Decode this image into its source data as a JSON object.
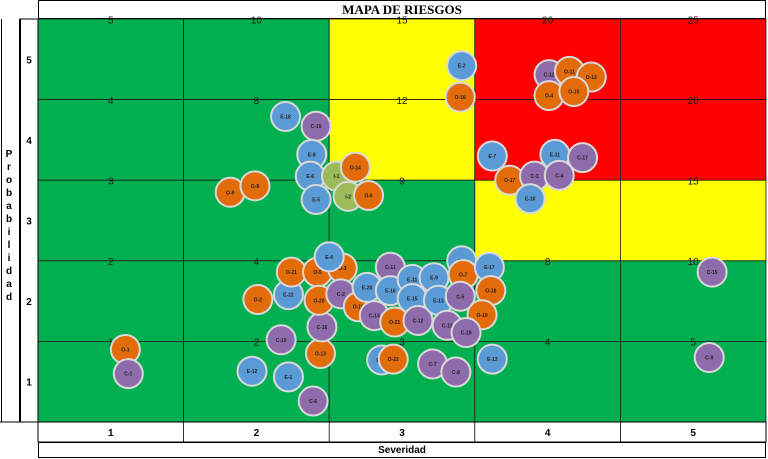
{
  "chart_data": {
    "type": "scatter",
    "title": "MAPA DE RIESGOS",
    "xlabel": "Severidad",
    "ylabel": "Probabilidad",
    "x_ticks": [
      1,
      2,
      3,
      4,
      5
    ],
    "y_ticks": [
      1,
      2,
      3,
      4,
      5
    ],
    "xlim": [
      0.5,
      5.5
    ],
    "ylim": [
      0.5,
      5.5
    ],
    "grid": true,
    "colors": {
      "low": "#00b050",
      "medium": "#ffff00",
      "high": "#ff0000",
      "E": "#5b9bd5",
      "C": "#8e6bab",
      "O": "#e36c0a",
      "I": "#9bbb59"
    },
    "cells": [
      {
        "sev": 1,
        "prob": 5,
        "value": 5,
        "level": "low"
      },
      {
        "sev": 2,
        "prob": 5,
        "value": 10,
        "level": "low"
      },
      {
        "sev": 3,
        "prob": 5,
        "value": 15,
        "level": "medium"
      },
      {
        "sev": 4,
        "prob": 5,
        "value": 20,
        "level": "high"
      },
      {
        "sev": 5,
        "prob": 5,
        "value": 25,
        "level": "high"
      },
      {
        "sev": 1,
        "prob": 4,
        "value": 4,
        "level": "low"
      },
      {
        "sev": 2,
        "prob": 4,
        "value": 8,
        "level": "low"
      },
      {
        "sev": 3,
        "prob": 4,
        "value": 12,
        "level": "medium"
      },
      {
        "sev": 4,
        "prob": 4,
        "value": 16,
        "level": "high"
      },
      {
        "sev": 5,
        "prob": 4,
        "value": 20,
        "level": "high"
      },
      {
        "sev": 1,
        "prob": 3,
        "value": 3,
        "level": "low"
      },
      {
        "sev": 2,
        "prob": 3,
        "value": 6,
        "level": "low"
      },
      {
        "sev": 3,
        "prob": 3,
        "value": 9,
        "level": "low"
      },
      {
        "sev": 4,
        "prob": 3,
        "value": 12,
        "level": "medium"
      },
      {
        "sev": 5,
        "prob": 3,
        "value": 15,
        "level": "medium"
      },
      {
        "sev": 1,
        "prob": 2,
        "value": 2,
        "level": "low"
      },
      {
        "sev": 2,
        "prob": 2,
        "value": 4,
        "level": "low"
      },
      {
        "sev": 3,
        "prob": 2,
        "value": 6,
        "level": "low"
      },
      {
        "sev": 4,
        "prob": 2,
        "value": 8,
        "level": "low"
      },
      {
        "sev": 5,
        "prob": 2,
        "value": 10,
        "level": "low"
      },
      {
        "sev": 1,
        "prob": 1,
        "value": 1,
        "level": "low"
      },
      {
        "sev": 2,
        "prob": 1,
        "value": 2,
        "level": "low"
      },
      {
        "sev": 3,
        "prob": 1,
        "value": 3,
        "level": "low"
      },
      {
        "sev": 4,
        "prob": 1,
        "value": 4,
        "level": "low"
      },
      {
        "sev": 5,
        "prob": 1,
        "value": 5,
        "level": "low"
      }
    ],
    "points": [
      {
        "label": "O-1",
        "x": 1.1,
        "y": 1.4,
        "type": "O"
      },
      {
        "label": "C-1",
        "x": 1.12,
        "y": 1.1,
        "type": "C"
      },
      {
        "label": "E-12",
        "x": 1.97,
        "y": 1.13,
        "type": "E"
      },
      {
        "label": "E-1",
        "x": 2.22,
        "y": 1.06,
        "type": "E"
      },
      {
        "label": "C-6",
        "x": 2.39,
        "y": 0.76,
        "type": "C"
      },
      {
        "label": "C-10",
        "x": 2.17,
        "y": 1.52,
        "type": "C"
      },
      {
        "label": "O-13",
        "x": 2.44,
        "y": 1.35,
        "type": "O"
      },
      {
        "label": "C-16",
        "x": 2.45,
        "y": 1.68,
        "type": "C"
      },
      {
        "label": "O-2",
        "x": 2.01,
        "y": 2.02,
        "type": "O"
      },
      {
        "label": "E-22",
        "x": 2.22,
        "y": 2.08,
        "type": "E"
      },
      {
        "label": "O-21",
        "x": 2.24,
        "y": 2.36,
        "type": "O"
      },
      {
        "label": "O-5",
        "x": 2.42,
        "y": 2.36,
        "type": "O"
      },
      {
        "label": "O-3",
        "x": 2.59,
        "y": 2.41,
        "type": "O"
      },
      {
        "label": "E-4",
        "x": 2.5,
        "y": 2.55,
        "type": "E"
      },
      {
        "label": "O-20",
        "x": 2.43,
        "y": 2.01,
        "type": "O"
      },
      {
        "label": "C-2",
        "x": 2.58,
        "y": 2.09,
        "type": "C"
      },
      {
        "label": "O-10",
        "x": 2.7,
        "y": 1.93,
        "type": "O"
      },
      {
        "label": "E-20",
        "x": 2.76,
        "y": 2.17,
        "type": "E"
      },
      {
        "label": "C-14",
        "x": 2.81,
        "y": 1.82,
        "type": "C"
      },
      {
        "label": "C-11",
        "x": 2.92,
        "y": 2.42,
        "type": "C"
      },
      {
        "label": "E-16",
        "x": 2.92,
        "y": 2.13,
        "type": "E"
      },
      {
        "label": "E-11",
        "x": 3.07,
        "y": 2.27,
        "type": "E"
      },
      {
        "label": "E-9",
        "x": 3.22,
        "y": 2.29,
        "type": "E"
      },
      {
        "label": "E-15",
        "x": 3.07,
        "y": 2.03,
        "type": "E"
      },
      {
        "label": "O-21",
        "x": 2.95,
        "y": 1.74,
        "type": "O"
      },
      {
        "label": "C-12",
        "x": 3.11,
        "y": 1.76,
        "type": "C"
      },
      {
        "label": "E-21",
        "x": 2.86,
        "y": 1.27,
        "type": "E"
      },
      {
        "label": "O-22",
        "x": 2.94,
        "y": 1.28,
        "type": "O"
      },
      {
        "label": "E-13",
        "x": 3.25,
        "y": 2.01,
        "type": "E"
      },
      {
        "label": "C-13",
        "x": 3.31,
        "y": 1.7,
        "type": "C"
      },
      {
        "label": "C-7",
        "x": 3.21,
        "y": 1.22,
        "type": "C"
      },
      {
        "label": "C-8",
        "x": 3.37,
        "y": 1.12,
        "type": "C"
      },
      {
        "label": "E-3",
        "x": 3.41,
        "y": 2.5,
        "type": "E"
      },
      {
        "label": "O-7",
        "x": 3.42,
        "y": 2.33,
        "type": "O"
      },
      {
        "label": "E-17",
        "x": 3.6,
        "y": 2.42,
        "type": "E"
      },
      {
        "label": "C-5",
        "x": 3.4,
        "y": 2.06,
        "type": "C"
      },
      {
        "label": "O-18",
        "x": 3.61,
        "y": 2.13,
        "type": "O"
      },
      {
        "label": "O-19",
        "x": 3.55,
        "y": 1.83,
        "type": "O"
      },
      {
        "label": "C-19",
        "x": 3.44,
        "y": 1.61,
        "type": "C"
      },
      {
        "label": "E-13",
        "x": 3.62,
        "y": 1.28,
        "type": "E"
      },
      {
        "label": "E-18",
        "x": 2.2,
        "y": 4.29,
        "type": "E"
      },
      {
        "label": "C-15",
        "x": 2.41,
        "y": 4.17,
        "type": "C"
      },
      {
        "label": "E-8",
        "x": 2.38,
        "y": 3.82,
        "type": "E"
      },
      {
        "label": "E-6",
        "x": 2.37,
        "y": 3.55,
        "type": "E"
      },
      {
        "label": "I-1",
        "x": 2.55,
        "y": 3.55,
        "type": "I"
      },
      {
        "label": "O-14",
        "x": 2.68,
        "y": 3.66,
        "type": "O"
      },
      {
        "label": "E-5",
        "x": 2.41,
        "y": 3.26,
        "type": "E"
      },
      {
        "label": "I-2",
        "x": 2.63,
        "y": 3.3,
        "type": "I"
      },
      {
        "label": "O-6",
        "x": 2.77,
        "y": 3.31,
        "type": "O"
      },
      {
        "label": "O-9",
        "x": 1.82,
        "y": 3.35,
        "type": "O"
      },
      {
        "label": "O-8",
        "x": 1.99,
        "y": 3.43,
        "type": "O"
      },
      {
        "label": "E-2",
        "x": 3.41,
        "y": 4.92,
        "type": "E"
      },
      {
        "label": "O-16",
        "x": 3.4,
        "y": 4.53,
        "type": "O"
      },
      {
        "label": "C-12",
        "x": 4.01,
        "y": 4.81,
        "type": "C"
      },
      {
        "label": "O-11",
        "x": 4.15,
        "y": 4.85,
        "type": "O"
      },
      {
        "label": "O-12",
        "x": 4.3,
        "y": 4.78,
        "type": "O"
      },
      {
        "label": "O-4",
        "x": 4.01,
        "y": 4.55,
        "type": "O"
      },
      {
        "label": "O-15",
        "x": 4.18,
        "y": 4.6,
        "type": "O"
      },
      {
        "label": "E-7",
        "x": 3.62,
        "y": 3.8,
        "type": "E"
      },
      {
        "label": "E-11",
        "x": 4.05,
        "y": 3.82,
        "type": "E"
      },
      {
        "label": "C-17",
        "x": 4.24,
        "y": 3.78,
        "type": "C"
      },
      {
        "label": "O-17",
        "x": 3.74,
        "y": 3.5,
        "type": "O"
      },
      {
        "label": "C-3",
        "x": 3.91,
        "y": 3.55,
        "type": "C"
      },
      {
        "label": "C-4",
        "x": 4.08,
        "y": 3.56,
        "type": "C"
      },
      {
        "label": "E-10",
        "x": 3.88,
        "y": 3.27,
        "type": "E"
      },
      {
        "label": "C-15",
        "x": 5.13,
        "y": 2.36,
        "type": "C"
      },
      {
        "label": "C-9",
        "x": 5.11,
        "y": 1.3,
        "type": "C"
      }
    ]
  }
}
